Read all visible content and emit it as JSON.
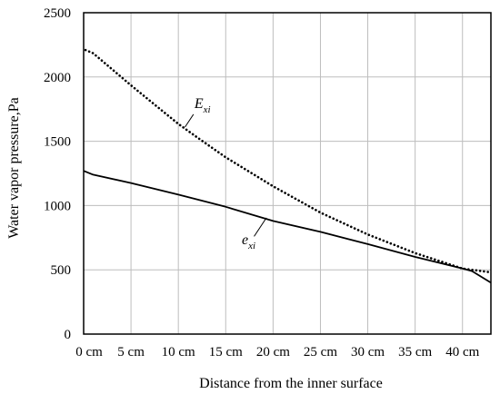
{
  "chart_data": {
    "type": "line",
    "xlabel": "Distance from the inner surface",
    "ylabel": "Water vapor pressure,Pa",
    "xlim": [
      0,
      43
    ],
    "ylim": [
      0,
      2500
    ],
    "x_ticks": [
      0,
      5,
      10,
      15,
      20,
      25,
      30,
      35,
      40
    ],
    "x_tick_labels": [
      "0 cm",
      "5 cm",
      "10 cm",
      "15 cm",
      "20 cm",
      "25 cm",
      "30 cm",
      "35 cm",
      "40 cm"
    ],
    "y_ticks": [
      0,
      500,
      1000,
      1500,
      2000,
      2500
    ],
    "y_tick_labels": [
      "0",
      "500",
      "1000",
      "1500",
      "2000",
      "2500"
    ],
    "grid": true,
    "series": [
      {
        "label_main": "E",
        "label_sub": "xi",
        "style": "dotted",
        "x": [
          0.2,
          1,
          3,
          5,
          8,
          10,
          12,
          15,
          20,
          25,
          30,
          35,
          40,
          43
        ],
        "y": [
          2210,
          2185,
          2060,
          1935,
          1755,
          1635,
          1530,
          1375,
          1150,
          945,
          775,
          630,
          510,
          480
        ]
      },
      {
        "label_main": "e",
        "label_sub": "xi",
        "style": "solid",
        "x": [
          0,
          1,
          5,
          10,
          15,
          20,
          25,
          30,
          35,
          40,
          41,
          43
        ],
        "y": [
          1270,
          1240,
          1175,
          1085,
          990,
          880,
          795,
          700,
          600,
          510,
          490,
          400
        ]
      }
    ],
    "annotations": [
      {
        "series": 0,
        "text_x": 11.7,
        "text_y": 1760,
        "pointer": [
          [
            11.6,
            1710
          ],
          [
            10.7,
            1610
          ]
        ]
      },
      {
        "series": 1,
        "text_x": 16.7,
        "text_y": 700,
        "pointer": [
          [
            18.0,
            760
          ],
          [
            19.3,
            905
          ]
        ]
      }
    ],
    "colors": {
      "line": "#000000",
      "grid": "#bdbdbd",
      "axis": "#000000"
    }
  }
}
